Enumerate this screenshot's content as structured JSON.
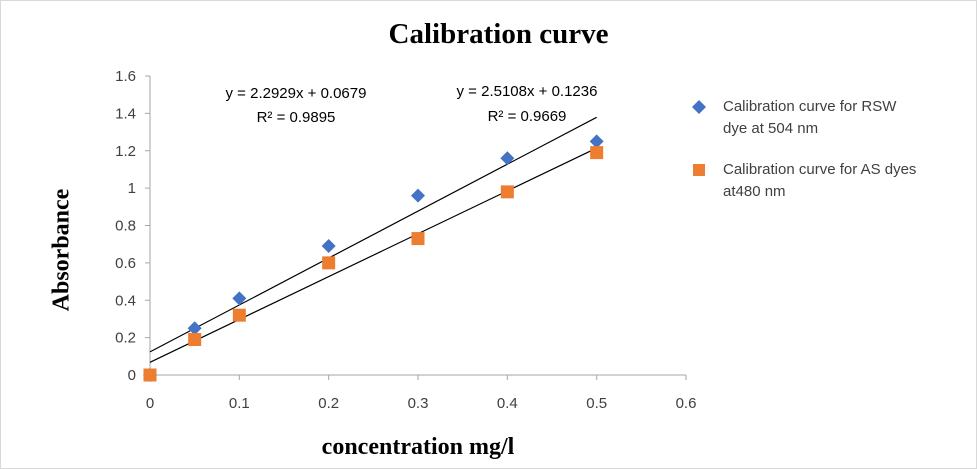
{
  "chart_data": {
    "type": "scatter",
    "title": "Calibration curve",
    "xlabel": "concentration mg/l",
    "ylabel": "Absorbance",
    "xlim": [
      0,
      0.6
    ],
    "ylim": [
      0,
      1.6
    ],
    "x_ticks": [
      "0",
      "0.1",
      "0.2",
      "0.3",
      "0.4",
      "0.5",
      "0.6"
    ],
    "y_ticks": [
      "0",
      "0.2",
      "0.4",
      "0.6",
      "0.8",
      "1",
      "1.2",
      "1.4",
      "1.6"
    ],
    "grid": false,
    "legend_position": "right",
    "series": [
      {
        "name": "Calibration curve for RSW\ndye at 504 nm",
        "marker": "diamond",
        "color": "#4472c4",
        "points": [
          [
            0,
            0
          ],
          [
            0.05,
            0.25
          ],
          [
            0.1,
            0.41
          ],
          [
            0.2,
            0.69
          ],
          [
            0.3,
            0.96
          ],
          [
            0.4,
            1.16
          ],
          [
            0.5,
            1.25
          ]
        ],
        "trendline": {
          "slope": 2.5108,
          "intercept": 0.1236,
          "x_range": [
            0,
            0.5
          ],
          "equation": "y = 2.5108x + 0.1236",
          "r2": "R² = 0.9669"
        }
      },
      {
        "name": "Calibration curve for AS dyes\nat480 nm",
        "marker": "square",
        "color": "#ed7d31",
        "points": [
          [
            0,
            0
          ],
          [
            0.05,
            0.19
          ],
          [
            0.1,
            0.32
          ],
          [
            0.2,
            0.6
          ],
          [
            0.3,
            0.73
          ],
          [
            0.4,
            0.98
          ],
          [
            0.5,
            1.19
          ]
        ],
        "trendline": {
          "slope": 2.2929,
          "intercept": 0.0679,
          "x_range": [
            0,
            0.5
          ],
          "equation": "y = 2.2929x + 0.0679",
          "r2": "R² = 0.9895"
        }
      }
    ]
  }
}
